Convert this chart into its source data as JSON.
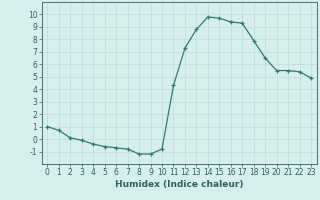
{
  "x": [
    0,
    1,
    2,
    3,
    4,
    5,
    6,
    7,
    8,
    9,
    10,
    11,
    12,
    13,
    14,
    15,
    16,
    17,
    18,
    19,
    20,
    21,
    22,
    23
  ],
  "y": [
    1.0,
    0.7,
    0.1,
    -0.1,
    -0.4,
    -0.6,
    -0.7,
    -0.8,
    -1.2,
    -1.2,
    -0.8,
    4.3,
    7.3,
    8.8,
    9.8,
    9.7,
    9.4,
    9.3,
    7.9,
    6.5,
    5.5,
    5.5,
    5.4,
    4.9
  ],
  "line_color": "#2e7d6e",
  "marker": "+",
  "marker_size": 3,
  "background_color": "#d6efed",
  "grid_color": "#c4dedd",
  "xlabel": "Humidex (Indice chaleur)",
  "ylim": [
    -2,
    11
  ],
  "xlim": [
    -0.5,
    23.5
  ],
  "yticks": [
    -1,
    0,
    1,
    2,
    3,
    4,
    5,
    6,
    7,
    8,
    9,
    10
  ],
  "xticks": [
    0,
    1,
    2,
    3,
    4,
    5,
    6,
    7,
    8,
    9,
    10,
    11,
    12,
    13,
    14,
    15,
    16,
    17,
    18,
    19,
    20,
    21,
    22,
    23
  ],
  "tick_label_fontsize": 5.5,
  "xlabel_fontsize": 6.5,
  "tick_color": "#2e6060",
  "axis_color": "#2e6060",
  "linewidth": 0.9,
  "markeredgewidth": 0.9
}
